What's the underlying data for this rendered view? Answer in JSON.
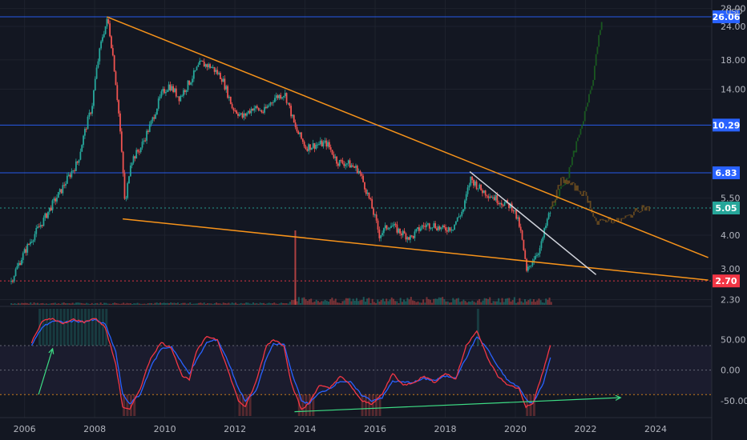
{
  "axis": {
    "currency": "USD",
    "x_ticks": [
      "2006",
      "2008",
      "2010",
      "2012",
      "2014",
      "2016",
      "2018",
      "2020",
      "2022",
      "2024"
    ],
    "price_ticks": [
      "28.00",
      "24.00",
      "18.00",
      "14.00",
      "5.50",
      "4.00",
      "3.00",
      "2.30"
    ],
    "osc_ticks": [
      "50.00",
      "0.00",
      "-50.00"
    ]
  },
  "colors": {
    "background": "#131722",
    "up": "#26a69a",
    "down": "#ef5350",
    "wedge": "#f7931a",
    "level_line": "#2962ff",
    "stoch_k": "#2962ff",
    "stoch_d": "#f23645",
    "projection_up": "#1b5e20",
    "projection_side": "#6d4c1f",
    "divergence": "#3ddc84"
  },
  "chart_data": [
    {
      "type": "candlestick",
      "title": "",
      "yscale": "log",
      "ylim": [
        2.2,
        28.5
      ],
      "xlim": [
        2005.3,
        2025.6
      ],
      "levels": [
        {
          "value": 26.06,
          "label": "26.06",
          "color": "#2962ff"
        },
        {
          "value": 10.29,
          "label": "10.29",
          "color": "#2962ff"
        },
        {
          "value": 6.83,
          "label": "6.83",
          "color": "#2962ff"
        },
        {
          "value": 5.05,
          "label": "5.05",
          "color": "#26a69a",
          "style": "dotted"
        },
        {
          "value": 2.7,
          "label": "2.70",
          "color": "#f23645",
          "style": "dotted"
        }
      ],
      "price_path": [
        [
          2005.6,
          2.7
        ],
        [
          2006.0,
          3.5
        ],
        [
          2006.5,
          4.5
        ],
        [
          2007.0,
          5.8
        ],
        [
          2007.5,
          7.5
        ],
        [
          2007.9,
          12.0
        ],
        [
          2008.2,
          22.0
        ],
        [
          2008.35,
          25.5
        ],
        [
          2008.6,
          14.0
        ],
        [
          2008.75,
          8.0
        ],
        [
          2008.85,
          5.0
        ],
        [
          2009.0,
          7.5
        ],
        [
          2009.3,
          8.5
        ],
        [
          2009.6,
          10.5
        ],
        [
          2009.9,
          13.5
        ],
        [
          2010.1,
          14.5
        ],
        [
          2010.4,
          13.0
        ],
        [
          2010.7,
          15.0
        ],
        [
          2011.0,
          17.5
        ],
        [
          2011.3,
          17.0
        ],
        [
          2011.6,
          15.5
        ],
        [
          2011.9,
          12.0
        ],
        [
          2012.2,
          11.0
        ],
        [
          2012.5,
          12.0
        ],
        [
          2012.8,
          11.5
        ],
        [
          2013.1,
          13.0
        ],
        [
          2013.4,
          13.5
        ],
        [
          2013.7,
          10.0
        ],
        [
          2014.0,
          8.5
        ],
        [
          2014.3,
          8.7
        ],
        [
          2014.6,
          8.8
        ],
        [
          2014.9,
          7.5
        ],
        [
          2015.2,
          7.4
        ],
        [
          2015.5,
          7.0
        ],
        [
          2015.8,
          5.5
        ],
        [
          2016.1,
          4.0
        ],
        [
          2016.4,
          4.4
        ],
        [
          2016.7,
          4.1
        ],
        [
          2017.0,
          3.9
        ],
        [
          2017.3,
          4.3
        ],
        [
          2017.6,
          4.4
        ],
        [
          2017.9,
          4.2
        ],
        [
          2018.2,
          4.3
        ],
        [
          2018.5,
          5.0
        ],
        [
          2018.7,
          6.5
        ],
        [
          2019.0,
          5.9
        ],
        [
          2019.3,
          5.6
        ],
        [
          2019.6,
          5.3
        ],
        [
          2019.9,
          5.1
        ],
        [
          2020.1,
          4.3
        ],
        [
          2020.3,
          2.9
        ],
        [
          2020.5,
          3.3
        ],
        [
          2020.7,
          3.6
        ],
        [
          2020.9,
          4.6
        ],
        [
          2021.0,
          5.0
        ]
      ],
      "volume_spike": {
        "x": 2013.7
      },
      "trendlines": [
        {
          "name": "wedge-upper",
          "from": [
            2008.35,
            26.06
          ],
          "to": [
            2025.5,
            3.3
          ]
        },
        {
          "name": "wedge-lower",
          "from": [
            2008.8,
            4.6
          ],
          "to": [
            2025.5,
            2.72
          ]
        },
        {
          "name": "breakout-line",
          "from": [
            2018.7,
            6.9
          ],
          "to": [
            2022.3,
            2.85
          ]
        }
      ],
      "projections": [
        {
          "name": "bullish",
          "path": [
            [
              2021.0,
              5.0
            ],
            [
              2021.5,
              6.8
            ],
            [
              2021.9,
              10.3
            ],
            [
              2022.2,
              15.5
            ],
            [
              2022.45,
              26.06
            ]
          ]
        },
        {
          "name": "sideways",
          "path": [
            [
              2021.0,
              5.0
            ],
            [
              2021.3,
              6.5
            ],
            [
              2021.7,
              6.0
            ],
            [
              2022.0,
              5.6
            ],
            [
              2022.3,
              4.4
            ],
            [
              2022.6,
              4.6
            ],
            [
              2022.9,
              4.5
            ],
            [
              2023.2,
              4.7
            ],
            [
              2023.6,
              5.1
            ],
            [
              2023.8,
              5.0
            ]
          ]
        }
      ]
    },
    {
      "type": "line",
      "title": "",
      "ylim": [
        -75,
        100
      ],
      "series": [
        {
          "values": [
            [
              2006.2,
              45
            ],
            [
              2006.5,
              80
            ],
            [
              2006.8,
              84
            ],
            [
              2007.1,
              75
            ],
            [
              2007.4,
              83
            ],
            [
              2007.7,
              78
            ],
            [
              2008.0,
              85
            ],
            [
              2008.3,
              70
            ],
            [
              2008.6,
              10
            ],
            [
              2008.8,
              -60
            ],
            [
              2009.0,
              -65
            ],
            [
              2009.3,
              -30
            ],
            [
              2009.6,
              20
            ],
            [
              2009.9,
              45
            ],
            [
              2010.2,
              35
            ],
            [
              2010.5,
              -10
            ],
            [
              2010.7,
              -15
            ],
            [
              2010.9,
              30
            ],
            [
              2011.2,
              55
            ],
            [
              2011.5,
              50
            ],
            [
              2011.8,
              0
            ],
            [
              2012.1,
              -50
            ],
            [
              2012.3,
              -60
            ],
            [
              2012.6,
              -20
            ],
            [
              2012.9,
              40
            ],
            [
              2013.1,
              50
            ],
            [
              2013.4,
              40
            ],
            [
              2013.6,
              -20
            ],
            [
              2013.9,
              -65
            ],
            [
              2014.1,
              -55
            ],
            [
              2014.4,
              -25
            ],
            [
              2014.7,
              -30
            ],
            [
              2015.0,
              -10
            ],
            [
              2015.3,
              -25
            ],
            [
              2015.6,
              -50
            ],
            [
              2015.9,
              -55
            ],
            [
              2016.2,
              -40
            ],
            [
              2016.5,
              -5
            ],
            [
              2016.8,
              -25
            ],
            [
              2017.1,
              -20
            ],
            [
              2017.4,
              -10
            ],
            [
              2017.7,
              -20
            ],
            [
              2018.0,
              -5
            ],
            [
              2018.3,
              -15
            ],
            [
              2018.6,
              40
            ],
            [
              2018.9,
              65
            ],
            [
              2019.2,
              20
            ],
            [
              2019.5,
              -10
            ],
            [
              2019.8,
              -25
            ],
            [
              2020.1,
              -30
            ],
            [
              2020.3,
              -60
            ],
            [
              2020.5,
              -55
            ],
            [
              2020.8,
              0
            ],
            [
              2021.0,
              40
            ]
          ]
        },
        {
          "values": [
            [
              2006.2,
              40
            ],
            [
              2006.5,
              70
            ],
            [
              2006.8,
              80
            ],
            [
              2007.1,
              78
            ],
            [
              2007.4,
              80
            ],
            [
              2007.7,
              79
            ],
            [
              2008.0,
              82
            ],
            [
              2008.3,
              75
            ],
            [
              2008.6,
              30
            ],
            [
              2008.8,
              -40
            ],
            [
              2009.0,
              -55
            ],
            [
              2009.3,
              -40
            ],
            [
              2009.6,
              5
            ],
            [
              2009.9,
              35
            ],
            [
              2010.2,
              38
            ],
            [
              2010.5,
              10
            ],
            [
              2010.7,
              -5
            ],
            [
              2010.9,
              15
            ],
            [
              2011.2,
              45
            ],
            [
              2011.5,
              50
            ],
            [
              2011.8,
              15
            ],
            [
              2012.1,
              -30
            ],
            [
              2012.3,
              -50
            ],
            [
              2012.6,
              -35
            ],
            [
              2012.9,
              20
            ],
            [
              2013.1,
              42
            ],
            [
              2013.4,
              42
            ],
            [
              2013.6,
              0
            ],
            [
              2013.9,
              -50
            ],
            [
              2014.1,
              -55
            ],
            [
              2014.4,
              -38
            ],
            [
              2014.7,
              -30
            ],
            [
              2015.0,
              -18
            ],
            [
              2015.3,
              -20
            ],
            [
              2015.6,
              -40
            ],
            [
              2015.9,
              -50
            ],
            [
              2016.2,
              -45
            ],
            [
              2016.5,
              -18
            ],
            [
              2016.8,
              -20
            ],
            [
              2017.1,
              -20
            ],
            [
              2017.4,
              -14
            ],
            [
              2017.7,
              -17
            ],
            [
              2018.0,
              -10
            ],
            [
              2018.3,
              -12
            ],
            [
              2018.6,
              20
            ],
            [
              2018.9,
              55
            ],
            [
              2019.2,
              35
            ],
            [
              2019.5,
              5
            ],
            [
              2019.8,
              -18
            ],
            [
              2020.1,
              -28
            ],
            [
              2020.3,
              -48
            ],
            [
              2020.5,
              -55
            ],
            [
              2020.8,
              -20
            ],
            [
              2021.0,
              20
            ]
          ]
        }
      ],
      "band": [
        -40,
        40
      ],
      "divergence_arrow": {
        "from": [
          2013.7,
          -68
        ],
        "to": [
          2023.0,
          -45
        ]
      },
      "up_arrow": {
        "from": [
          2006.4,
          -40
        ],
        "to": [
          2006.8,
          35
        ]
      }
    }
  ]
}
